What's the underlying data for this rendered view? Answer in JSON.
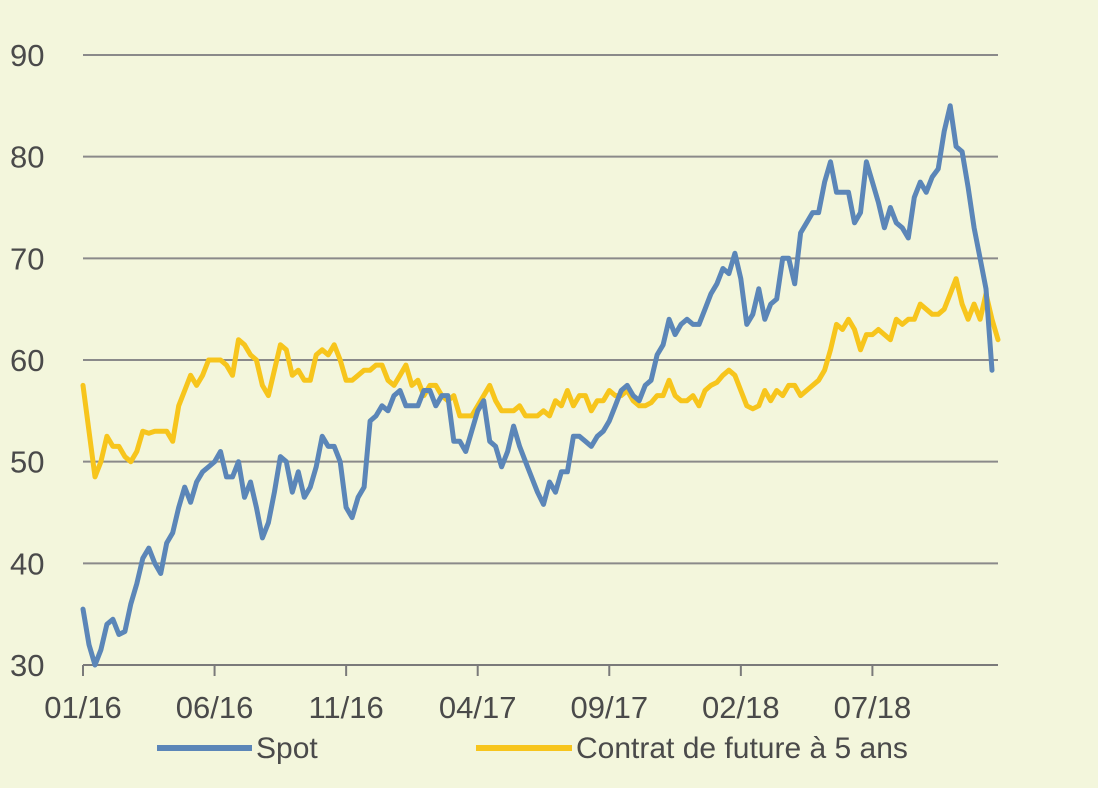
{
  "colors": {
    "background": "#f3f6dc",
    "grid": "#8a8a8a",
    "axis": "#7a7a7a",
    "text": "#4a4a4a",
    "spot": "#5b86b8",
    "future": "#f7c51c"
  },
  "chart_data": {
    "type": "line",
    "title": "",
    "xlabel": "",
    "ylabel": "",
    "ylim": [
      30,
      90
    ],
    "yticks": [
      30,
      40,
      50,
      60,
      70,
      80,
      90
    ],
    "ytick_labels": [
      "30",
      "40",
      "50",
      "60",
      "70",
      "80",
      "90"
    ],
    "xlim": [
      0,
      153
    ],
    "xticks": [
      0,
      22,
      44,
      66,
      88,
      110,
      132
    ],
    "xtick_labels": [
      "01/16",
      "06/16",
      "11/16",
      "04/17",
      "09/17",
      "02/18",
      "07/18"
    ],
    "grid": true,
    "legend_position": "bottom",
    "series": [
      {
        "name": "Spot",
        "color": "#5b86b8",
        "values": [
          35.5,
          32,
          30,
          31.5,
          34,
          34.5,
          33,
          33.3,
          36,
          38,
          40.5,
          41.5,
          40,
          39,
          42,
          43,
          45.5,
          47.5,
          46,
          48,
          49,
          49.5,
          50,
          51,
          48.5,
          48.5,
          50,
          46.5,
          48,
          45.5,
          42.5,
          44,
          47,
          50.5,
          50,
          47,
          49,
          46.5,
          47.5,
          49.5,
          52.5,
          51.5,
          51.5,
          50,
          45.5,
          44.5,
          46.5,
          47.5,
          54,
          54.5,
          55.5,
          55,
          56.5,
          57,
          55.5,
          55.5,
          55.5,
          57,
          57,
          55.5,
          56.5,
          56.5,
          52,
          52,
          51,
          53,
          55,
          56,
          52,
          51.5,
          49.5,
          51,
          53.5,
          51.5,
          50,
          48.5,
          47,
          45.8,
          48,
          47,
          49,
          49,
          52.5,
          52.5,
          52,
          51.5,
          52.5,
          53,
          54,
          55.5,
          57,
          57.5,
          56.5,
          56,
          57.5,
          58,
          60.5,
          61.5,
          64,
          62.5,
          63.5,
          64,
          63.5,
          63.5,
          65,
          66.5,
          67.5,
          69,
          68.5,
          70.5,
          68,
          63.5,
          64.5,
          67,
          64,
          65.5,
          66,
          70,
          70,
          67.5,
          72.5,
          73.5,
          74.5,
          74.5,
          77.5,
          79.5,
          76.5,
          76.5,
          76.5,
          73.5,
          74.5,
          79.5,
          77.5,
          75.5,
          73,
          75,
          73.5,
          73,
          72,
          76,
          77.5,
          76.5,
          78,
          78.8,
          82.5,
          85,
          81,
          80.5,
          77,
          73,
          70,
          67,
          59
        ]
      },
      {
        "name": "Contrat de future à 5 ans",
        "color": "#f7c51c",
        "values": [
          57.5,
          53,
          48.5,
          50,
          52.5,
          51.5,
          51.5,
          50.5,
          50,
          51,
          53,
          52.8,
          53,
          53,
          53,
          52,
          55.5,
          57,
          58.5,
          57.5,
          58.5,
          60,
          60,
          60,
          59.5,
          58.5,
          62,
          61.5,
          60.5,
          60,
          57.5,
          56.5,
          59,
          61.5,
          61,
          58.5,
          59,
          58,
          58,
          60.5,
          61,
          60.5,
          61.5,
          60,
          58,
          58,
          58.5,
          59,
          59,
          59.5,
          59.5,
          58,
          57.5,
          58.5,
          59.5,
          57.5,
          58,
          56.5,
          57.5,
          57.5,
          56.5,
          56,
          56.5,
          54.5,
          54.5,
          54.5,
          55.5,
          56.5,
          57.5,
          56,
          55,
          55,
          55,
          55.5,
          54.5,
          54.5,
          54.5,
          55,
          54.5,
          56,
          55.5,
          57,
          55.5,
          56.5,
          56.5,
          55,
          56,
          56,
          57,
          56.5,
          56.5,
          57,
          56,
          55.5,
          55.5,
          55.8,
          56.5,
          56.5,
          58,
          56.5,
          56,
          56,
          56.5,
          55.5,
          57,
          57.5,
          57.8,
          58.5,
          59,
          58.5,
          57,
          55.5,
          55.2,
          55.5,
          57,
          56,
          57,
          56.5,
          57.5,
          57.5,
          56.5,
          57,
          57.5,
          58,
          59,
          61,
          63.5,
          63,
          64,
          63,
          61,
          62.5,
          62.5,
          63,
          62.5,
          62,
          64,
          63.5,
          64,
          64,
          65.5,
          65,
          64.5,
          64.5,
          65,
          66.5,
          68,
          65.5,
          64,
          65.5,
          64,
          66.5,
          64,
          62
        ]
      }
    ]
  }
}
